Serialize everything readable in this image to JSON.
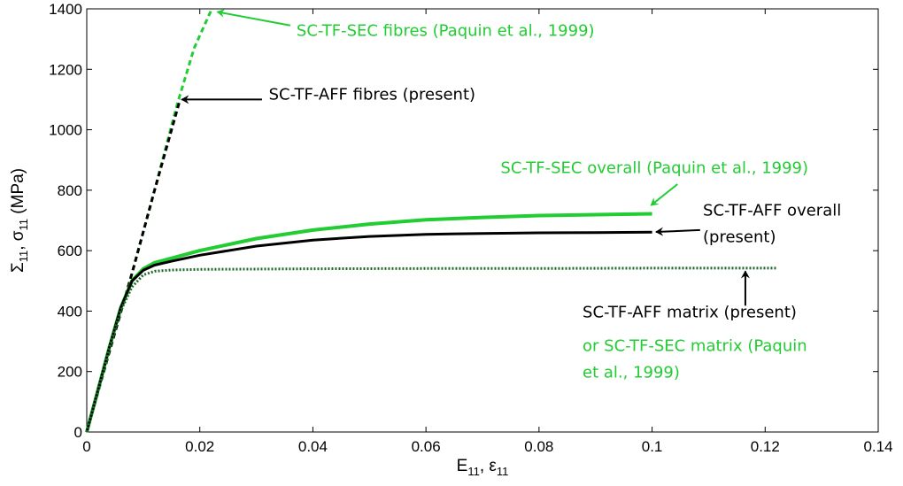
{
  "chart_data": {
    "type": "line",
    "title": "",
    "xlabel": {
      "base": "E",
      "sub1": "11",
      "sep": ", ε",
      "sub2": "11"
    },
    "ylabel": {
      "base": "Σ",
      "sub1": "11",
      "sep": ", σ",
      "sub2": "11",
      "unit": " (MPa)"
    },
    "xlim": [
      0,
      0.14
    ],
    "ylim": [
      0,
      1400
    ],
    "xticks": [
      0,
      0.02,
      0.04,
      0.06,
      0.08,
      0.1,
      0.12,
      0.14
    ],
    "xtick_labels": [
      "0",
      "0.02",
      "0.04",
      "0.06",
      "0.08",
      "0.1",
      "0.12",
      "0.14"
    ],
    "yticks": [
      0,
      200,
      400,
      600,
      800,
      1000,
      1200,
      1400
    ],
    "ytick_labels": [
      "0",
      "200",
      "400",
      "600",
      "800",
      "1000",
      "1200",
      "1400"
    ],
    "grid": false,
    "colors": {
      "black": "#000000",
      "green": "#22cc33",
      "dark_green": "#1f6b2a"
    },
    "series": [
      {
        "color": "#22cc33",
        "style": "dashed",
        "width": 3,
        "x": [
          0,
          0.004,
          0.008,
          0.012,
          0.016,
          0.019,
          0.022
        ],
        "y": [
          0,
          265,
          525,
          800,
          1085,
          1270,
          1395
        ]
      },
      {
        "color": "#000000",
        "style": "dashed",
        "width": 3,
        "x": [
          0,
          0.004,
          0.008,
          0.012,
          0.0165
        ],
        "y": [
          0,
          265,
          525,
          800,
          1100
        ]
      },
      {
        "color": "#22cc33",
        "style": "solid",
        "width": 4,
        "x": [
          0,
          0.002,
          0.004,
          0.006,
          0.008,
          0.01,
          0.012,
          0.015,
          0.02,
          0.03,
          0.04,
          0.05,
          0.06,
          0.07,
          0.08,
          0.09,
          0.1
        ],
        "y": [
          0,
          140,
          280,
          410,
          500,
          540,
          560,
          575,
          600,
          640,
          668,
          688,
          702,
          710,
          716,
          719,
          722
        ]
      },
      {
        "color": "#000000",
        "style": "solid",
        "width": 3,
        "x": [
          0,
          0.002,
          0.004,
          0.006,
          0.008,
          0.01,
          0.012,
          0.015,
          0.02,
          0.03,
          0.04,
          0.05,
          0.06,
          0.07,
          0.08,
          0.09,
          0.1
        ],
        "y": [
          0,
          140,
          280,
          410,
          500,
          535,
          552,
          565,
          585,
          615,
          635,
          647,
          654,
          657,
          659,
          660,
          661
        ]
      },
      {
        "color": "#1f6b2a",
        "style": "dotted",
        "width": 3,
        "x": [
          0,
          0.002,
          0.004,
          0.006,
          0.008,
          0.01,
          0.012,
          0.015,
          0.02,
          0.04,
          0.06,
          0.08,
          0.1,
          0.122
        ],
        "y": [
          0,
          140,
          280,
          400,
          480,
          520,
          532,
          536,
          538,
          540,
          541,
          541,
          542,
          542
        ]
      }
    ],
    "annotations": [
      {
        "lines": [
          "SC-TF-SEC fibres (Paquin et al., 1999)"
        ],
        "color": "#22cc33",
        "text_at": [
          0.0371,
          1310
        ],
        "arrow_from": [
          0.036,
          1345
        ],
        "arrow_to": [
          0.0231,
          1390
        ]
      },
      {
        "lines": [
          "SC-TF-AFF fibres (present)"
        ],
        "color": "#000000",
        "text_at": [
          0.0322,
          1100
        ],
        "arrow_from": [
          0.031,
          1100
        ],
        "arrow_to": [
          0.0168,
          1100
        ]
      },
      {
        "lines": [
          "SC-TF-SEC overall (Paquin et al., 1999)"
        ],
        "color": "#22cc33",
        "text_at": [
          0.0732,
          856
        ],
        "arrow_from": [
          0.1045,
          820
        ],
        "arrow_to": [
          0.0998,
          750
        ]
      },
      {
        "lines": [
          "SC-TF-AFF overall",
          "(present)"
        ],
        "color": "#000000",
        "text_at": [
          0.109,
          716
        ],
        "arrow_from": [
          0.1085,
          668
        ],
        "arrow_to": [
          0.1007,
          662
        ]
      },
      {
        "lines": [
          "SC-TF-AFF matrix (present)"
        ],
        "color": "#000000",
        "text_at": [
          0.0877,
          380
        ],
        "arrow_from": [
          0.1165,
          418
        ],
        "arrow_to": [
          0.1165,
          532
        ]
      },
      {
        "lines": [
          "or SC-TF-SEC matrix (Paquin",
          "et al., 1999)"
        ],
        "color": "#22cc33",
        "text_at": [
          0.0877,
          268
        ]
      }
    ]
  }
}
